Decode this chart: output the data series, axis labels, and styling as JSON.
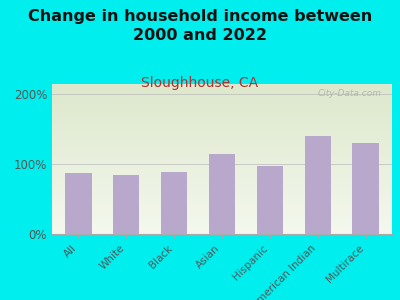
{
  "title": "Change in household income between\n2000 and 2022",
  "subtitle": "Sloughhouse, CA",
  "categories": [
    "All",
    "White",
    "Black",
    "Asian",
    "Hispanic",
    "American Indian",
    "Multirace"
  ],
  "values": [
    88,
    85,
    89,
    115,
    97,
    140,
    130
  ],
  "bar_color": "#b8a8cc",
  "background_outer": "#00eeee",
  "background_inner_top": "#dde8cc",
  "background_inner_bottom": "#f4f8ee",
  "title_color": "#111111",
  "subtitle_color": "#aa3333",
  "tick_color": "#555555",
  "ylabel_ticks": [
    "0%",
    "100%",
    "200%"
  ],
  "ylabel_values": [
    0,
    100,
    200
  ],
  "ylim": [
    0,
    215
  ],
  "watermark": "City-Data.com",
  "title_fontsize": 11.5,
  "subtitle_fontsize": 10
}
